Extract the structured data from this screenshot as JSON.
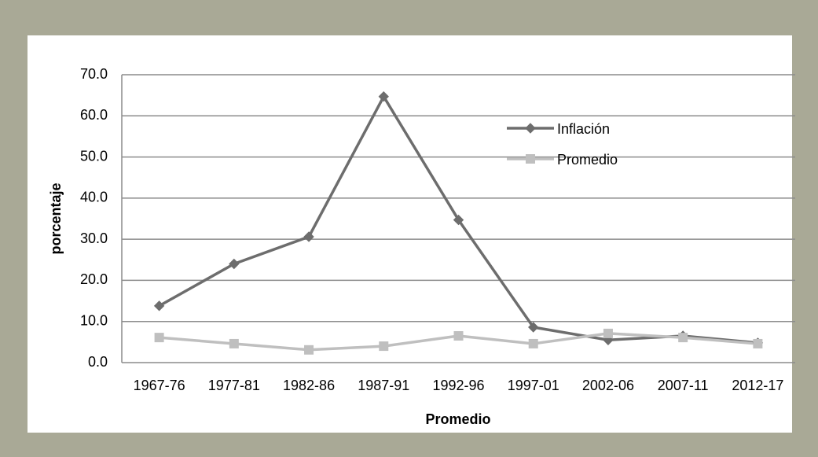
{
  "chart_data": {
    "type": "line",
    "xlabel": "Promedio",
    "ylabel": "porcentaje",
    "categories": [
      "1967-76",
      "1977-81",
      "1982-86",
      "1987-91",
      "1992-96",
      "1997-01",
      "2002-06",
      "2007-11",
      "2012-17"
    ],
    "series": [
      {
        "name": "Inflación",
        "color": "#6d6d6d",
        "marker": "diamond",
        "values": [
          13.8,
          24.0,
          30.6,
          64.7,
          34.7,
          8.6,
          5.5,
          6.5,
          4.8
        ]
      },
      {
        "name": "Promedio",
        "color": "#bfbfbf",
        "marker": "square",
        "values": [
          6.1,
          4.6,
          3.1,
          4.0,
          6.5,
          4.6,
          7.1,
          6.1,
          4.6
        ]
      }
    ],
    "ylim": [
      0,
      70
    ],
    "yticks": [
      {
        "value": 0,
        "label": "0.0"
      },
      {
        "value": 10,
        "label": "10.0"
      },
      {
        "value": 20,
        "label": "20.0"
      },
      {
        "value": 30,
        "label": "30.0"
      },
      {
        "value": 40,
        "label": "40.0"
      },
      {
        "value": 50,
        "label": "50.0"
      },
      {
        "value": 60,
        "label": "60.0"
      },
      {
        "value": 70,
        "label": "70.0"
      }
    ],
    "grid": true,
    "legend": "upper right"
  }
}
